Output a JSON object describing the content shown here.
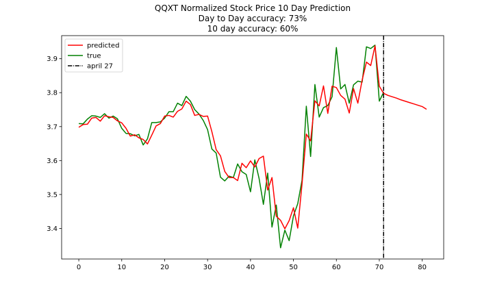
{
  "chart_data": {
    "type": "line",
    "title_lines": [
      "QQXT Normalized Stock Price 10 Day Prediction",
      "Day to Day accuracy: 73%",
      "10 day accuracy: 60%"
    ],
    "xlabel": "",
    "ylabel": "",
    "xlim": [
      -4,
      85
    ],
    "ylim": [
      3.31,
      3.968
    ],
    "xticks": [
      0,
      10,
      20,
      30,
      40,
      50,
      60,
      70,
      80
    ],
    "yticks": [
      3.4,
      3.5,
      3.6,
      3.7,
      3.8,
      3.9
    ],
    "grid": false,
    "legend_position": "upper left",
    "series": [
      {
        "name": "predicted",
        "color": "#ff0000",
        "x": [
          0,
          1,
          2,
          3,
          4,
          5,
          6,
          7,
          8,
          9,
          10,
          11,
          12,
          13,
          14,
          15,
          16,
          17,
          18,
          19,
          20,
          21,
          22,
          23,
          24,
          25,
          26,
          27,
          28,
          29,
          30,
          31,
          32,
          33,
          34,
          35,
          36,
          37,
          38,
          39,
          40,
          41,
          42,
          43,
          44,
          45,
          46,
          47,
          48,
          49,
          50,
          51,
          52,
          53,
          54,
          55,
          56,
          57,
          58,
          59,
          60,
          61,
          62,
          63,
          64,
          65,
          66,
          67,
          68,
          69,
          70,
          71,
          72,
          73,
          74,
          75,
          76,
          77,
          78,
          79,
          80,
          81
        ],
        "y": [
          3.698,
          3.706,
          3.707,
          3.725,
          3.727,
          3.716,
          3.732,
          3.729,
          3.727,
          3.717,
          3.711,
          3.695,
          3.672,
          3.676,
          3.667,
          3.662,
          3.649,
          3.675,
          3.702,
          3.709,
          3.731,
          3.733,
          3.728,
          3.745,
          3.752,
          3.775,
          3.765,
          3.733,
          3.736,
          3.73,
          3.731,
          3.685,
          3.632,
          3.614,
          3.568,
          3.55,
          3.55,
          3.541,
          3.592,
          3.579,
          3.599,
          3.581,
          3.606,
          3.613,
          3.513,
          3.55,
          3.436,
          3.424,
          3.399,
          3.423,
          3.461,
          3.401,
          3.531,
          3.678,
          3.658,
          3.776,
          3.761,
          3.82,
          3.739,
          3.819,
          3.815,
          3.792,
          3.781,
          3.74,
          3.812,
          3.769,
          3.837,
          3.89,
          3.88,
          3.938,
          3.819,
          3.798,
          3.792,
          3.788,
          3.784,
          3.779,
          3.775,
          3.771,
          3.767,
          3.763,
          3.759,
          3.751
        ]
      },
      {
        "name": "true",
        "color": "#008000",
        "x": [
          0,
          1,
          2,
          3,
          4,
          5,
          6,
          7,
          8,
          9,
          10,
          11,
          12,
          13,
          14,
          15,
          16,
          17,
          18,
          19,
          20,
          21,
          22,
          23,
          24,
          25,
          26,
          27,
          28,
          29,
          30,
          31,
          32,
          33,
          34,
          35,
          36,
          37,
          38,
          39,
          40,
          41,
          42,
          43,
          44,
          45,
          46,
          47,
          48,
          49,
          50,
          51,
          52,
          53,
          54,
          55,
          56,
          57,
          58,
          59,
          60,
          61,
          62,
          63,
          64,
          65,
          66,
          67,
          68,
          69,
          70,
          71
        ],
        "y": [
          3.709,
          3.708,
          3.722,
          3.732,
          3.731,
          3.727,
          3.738,
          3.725,
          3.731,
          3.723,
          3.695,
          3.68,
          3.679,
          3.673,
          3.677,
          3.646,
          3.664,
          3.712,
          3.712,
          3.714,
          3.725,
          3.744,
          3.744,
          3.769,
          3.762,
          3.789,
          3.775,
          3.75,
          3.737,
          3.718,
          3.691,
          3.634,
          3.622,
          3.551,
          3.54,
          3.554,
          3.55,
          3.59,
          3.567,
          3.559,
          3.508,
          3.602,
          3.547,
          3.471,
          3.563,
          3.404,
          3.469,
          3.343,
          3.395,
          3.364,
          3.437,
          3.473,
          3.542,
          3.76,
          3.612,
          3.824,
          3.728,
          3.756,
          3.762,
          3.788,
          3.933,
          3.811,
          3.824,
          3.769,
          3.823,
          3.834,
          3.831,
          3.935,
          3.93,
          3.94,
          3.775,
          3.801
        ]
      }
    ],
    "annotations": [
      {
        "type": "vline",
        "x": 71,
        "label": "april 27",
        "color": "#000000",
        "style": "dash-dot"
      }
    ]
  }
}
